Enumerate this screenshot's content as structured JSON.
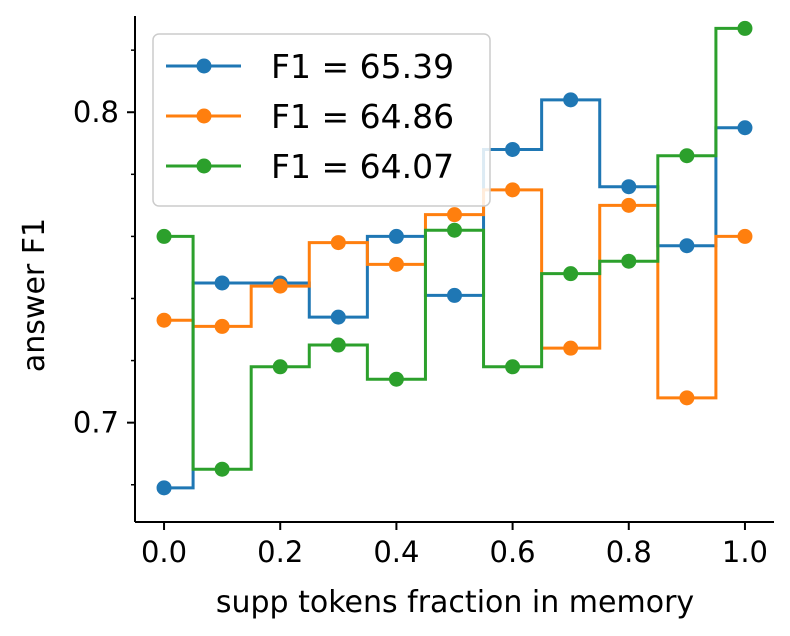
{
  "chart_data": {
    "type": "line",
    "drawstyle": "steps-mid",
    "title": "",
    "xlabel": "supp tokens fraction in memory",
    "ylabel": "answer F1",
    "xlim": [
      -0.05,
      1.05
    ],
    "ylim": [
      0.668,
      0.831
    ],
    "xticks": [
      0.0,
      0.2,
      0.4,
      0.6,
      0.8,
      1.0
    ],
    "xtick_labels": [
      "0.0",
      "0.2",
      "0.4",
      "0.6",
      "0.8",
      "1.0"
    ],
    "yticks": [
      0.7,
      0.8
    ],
    "ytick_labels": [
      "0.7",
      "0.8"
    ],
    "x": [
      0.0,
      0.1,
      0.2,
      0.3,
      0.4,
      0.5,
      0.6,
      0.7,
      0.8,
      0.9,
      1.0
    ],
    "legend_position": "top-left",
    "series": [
      {
        "name": "F1 = 65.39",
        "color": "#1f77b4",
        "values": [
          0.679,
          0.745,
          0.745,
          0.734,
          0.76,
          0.741,
          0.788,
          0.804,
          0.776,
          0.757,
          0.795
        ]
      },
      {
        "name": "F1 = 64.86",
        "color": "#ff7f0e",
        "values": [
          0.733,
          0.731,
          0.744,
          0.758,
          0.751,
          0.767,
          0.775,
          0.724,
          0.77,
          0.708,
          0.76
        ]
      },
      {
        "name": "F1 = 64.07",
        "color": "#2ca02c",
        "values": [
          0.76,
          0.685,
          0.718,
          0.725,
          0.714,
          0.762,
          0.718,
          0.748,
          0.752,
          0.786,
          0.827
        ]
      }
    ]
  }
}
